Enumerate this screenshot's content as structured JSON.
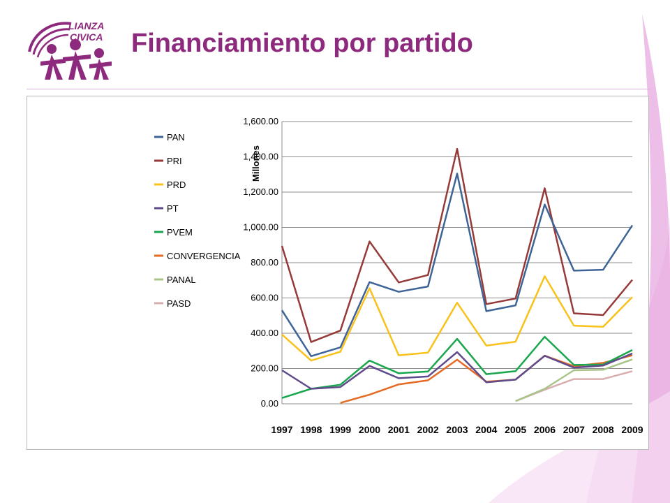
{
  "slide": {
    "title": "Financiamiento por partido",
    "logo_text": [
      "LIANZA",
      "CIVICA"
    ]
  },
  "chart_data": {
    "type": "line",
    "x": [
      "1997",
      "1998",
      "1999",
      "2000",
      "2001",
      "2002",
      "2003",
      "2004",
      "2005",
      "2006",
      "2007",
      "2008",
      "2009"
    ],
    "ylim": [
      0,
      1600
    ],
    "yticks": [
      0,
      200,
      400,
      600,
      800,
      1000,
      1200,
      1400,
      1600
    ],
    "ytick_labels": [
      "0.00",
      "200.00",
      "400.00",
      "600.00",
      "800.00",
      "1,000.00",
      "1,200.00",
      "1,400.00",
      "1,600.00"
    ],
    "ylabel": "Millones",
    "grid": true,
    "legend_position": "left",
    "series": [
      {
        "name": "PAN",
        "color": "#3e6497",
        "values": [
          530,
          270,
          320,
          690,
          635,
          665,
          1305,
          525,
          558,
          1130,
          755,
          760,
          1012
        ]
      },
      {
        "name": "PRI",
        "color": "#953a38",
        "values": [
          895,
          350,
          415,
          920,
          688,
          730,
          1445,
          565,
          597,
          1222,
          513,
          503,
          703
        ]
      },
      {
        "name": "PRD",
        "color": "#f8c21a",
        "values": [
          393,
          245,
          295,
          655,
          275,
          290,
          573,
          330,
          352,
          723,
          443,
          437,
          605
        ]
      },
      {
        "name": "PT",
        "color": "#5f4a8b",
        "values": [
          190,
          85,
          95,
          215,
          145,
          155,
          293,
          122,
          137,
          272,
          205,
          217,
          285
        ]
      },
      {
        "name": "PVEM",
        "color": "#19a64d",
        "values": [
          33,
          85,
          108,
          245,
          173,
          183,
          368,
          168,
          185,
          380,
          220,
          222,
          305
        ]
      },
      {
        "name": "CONVERGENCIA",
        "color": "#e56b24",
        "values": [
          null,
          null,
          5,
          52,
          110,
          133,
          250,
          125,
          137,
          273,
          213,
          232,
          275
        ]
      },
      {
        "name": "PANAL",
        "color": "#a9c48a",
        "values": [
          null,
          null,
          null,
          null,
          null,
          null,
          null,
          null,
          15,
          85,
          190,
          193,
          252
        ]
      },
      {
        "name": "PASD",
        "color": "#d9aeae",
        "values": [
          null,
          null,
          null,
          null,
          null,
          null,
          null,
          null,
          15,
          80,
          140,
          140,
          185
        ]
      }
    ]
  }
}
